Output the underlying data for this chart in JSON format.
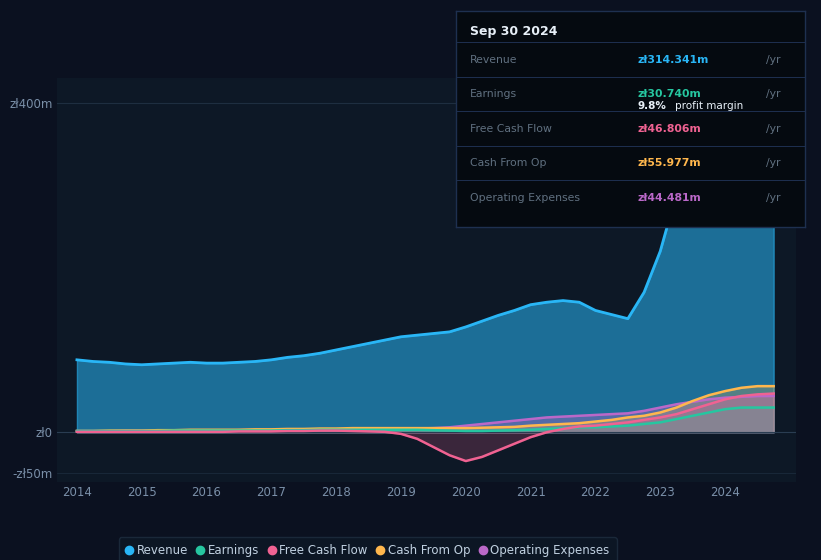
{
  "bg_color": "#0b1120",
  "chart_bg": "#0d1826",
  "tooltip_bg": "#050a10",
  "title": "Sep 30 2024",
  "years": [
    2014.0,
    2014.25,
    2014.5,
    2014.75,
    2015.0,
    2015.25,
    2015.5,
    2015.75,
    2016.0,
    2016.25,
    2016.5,
    2016.75,
    2017.0,
    2017.25,
    2017.5,
    2017.75,
    2018.0,
    2018.25,
    2018.5,
    2018.75,
    2019.0,
    2019.25,
    2019.5,
    2019.75,
    2020.0,
    2020.25,
    2020.5,
    2020.75,
    2021.0,
    2021.25,
    2021.5,
    2021.75,
    2022.0,
    2022.25,
    2022.5,
    2022.75,
    2023.0,
    2023.25,
    2023.5,
    2023.75,
    2024.0,
    2024.25,
    2024.5,
    2024.75
  ],
  "revenue": [
    88,
    86,
    85,
    83,
    82,
    83,
    84,
    85,
    84,
    84,
    85,
    86,
    88,
    91,
    93,
    96,
    100,
    104,
    108,
    112,
    116,
    118,
    120,
    122,
    128,
    135,
    142,
    148,
    155,
    158,
    160,
    158,
    148,
    143,
    138,
    170,
    220,
    290,
    350,
    385,
    390,
    370,
    340,
    315
  ],
  "earnings": [
    1.5,
    1.5,
    1.5,
    1.5,
    1.5,
    1.5,
    2,
    2,
    2,
    2,
    2,
    2,
    2,
    2.5,
    2.5,
    3,
    3,
    3,
    3,
    3,
    3,
    3,
    2.5,
    2,
    1.5,
    1.5,
    2,
    2.5,
    3,
    4,
    5,
    6,
    6,
    7,
    8,
    10,
    12,
    16,
    20,
    24,
    28,
    30,
    30,
    30
  ],
  "free_cash_flow": [
    0.5,
    0.5,
    0.5,
    0.5,
    0.5,
    0.5,
    0.5,
    0.5,
    0.5,
    0.5,
    1,
    1,
    1,
    1.5,
    1.5,
    2,
    2,
    1.5,
    1,
    0.5,
    -2,
    -8,
    -18,
    -28,
    -35,
    -30,
    -22,
    -14,
    -6,
    0,
    4,
    7,
    8,
    10,
    12,
    15,
    18,
    22,
    28,
    34,
    40,
    44,
    46,
    47
  ],
  "cash_from_op": [
    1.5,
    1.5,
    2,
    2,
    2,
    2.5,
    2.5,
    3,
    3,
    3,
    3,
    3.5,
    3.5,
    4,
    4,
    4.5,
    4.5,
    5,
    5,
    5,
    5,
    5,
    5,
    5,
    5,
    5.5,
    6,
    6.5,
    8,
    9,
    10,
    11,
    13,
    15,
    18,
    20,
    24,
    30,
    38,
    45,
    50,
    54,
    56,
    56
  ],
  "operating_expenses": [
    1.5,
    1.5,
    1.5,
    2,
    2,
    2,
    2,
    2,
    2,
    2,
    2.5,
    2.5,
    2.5,
    3,
    3,
    3,
    3,
    3.5,
    3.5,
    4,
    4,
    4.5,
    5,
    6,
    8,
    10,
    12,
    14,
    16,
    18,
    19,
    20,
    21,
    22,
    23,
    26,
    30,
    34,
    37,
    40,
    42,
    43,
    44,
    44
  ],
  "revenue_color": "#29b6f6",
  "earnings_color": "#26c6a0",
  "fcf_color": "#f06292",
  "cashop_color": "#ffb74d",
  "opex_color": "#ba68c8",
  "axis_text_color": "#7a8fa8",
  "grid_color": "#1e2e40",
  "legend_bg": "#0d1826",
  "legend_border": "#1e2e40",
  "xlim": [
    2013.7,
    2025.1
  ],
  "ylim": [
    -60,
    430
  ]
}
